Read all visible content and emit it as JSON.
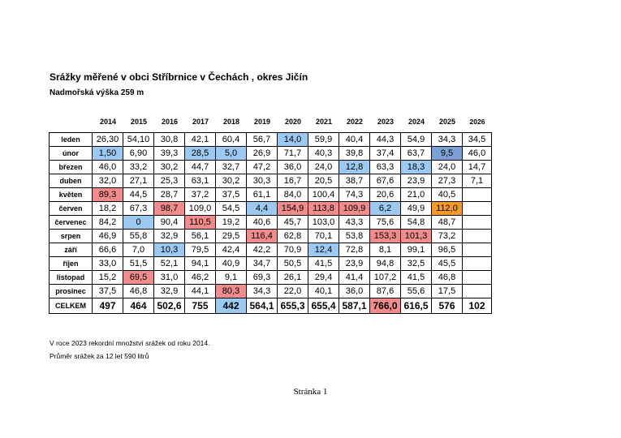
{
  "document": {
    "title": "Srážky měřené v obci Stříbrnice v Čechách , okres Jičín",
    "subtitle": "Nadmořská výška 259 m",
    "note1": "V roce 2023 rekordní množství srážek od roku 2014.",
    "note2": "Průměr srážek za 12 let 590 litrů",
    "footer": "Stránka 1"
  },
  "colors": {
    "blue": "#9cc9f2",
    "dark_blue": "#7ba0d6",
    "red": "#f28b8b",
    "orange": "#f59a23"
  },
  "table": {
    "years": [
      "2014",
      "2015",
      "2016",
      "2017",
      "2018",
      "2019",
      "2020",
      "2021",
      "2022",
      "2023",
      "2024",
      "2025",
      "2026"
    ],
    "rows": [
      {
        "month": "leden",
        "values": [
          "26,30",
          "54,10",
          "30,8",
          "42,1",
          "60,4",
          "56,7",
          "14,0",
          "59,9",
          "40,4",
          "44,3",
          "54,9",
          "34,3",
          "34,5"
        ],
        "highlights": {
          "6": "blue"
        }
      },
      {
        "month": "únor",
        "values": [
          "1,50",
          "6,90",
          "39,3",
          "28,5",
          "5,0",
          "26,9",
          "71,7",
          "40,3",
          "39,8",
          "37,4",
          "63,7",
          "9,5",
          "46,0"
        ],
        "highlights": {
          "0": "blue",
          "3": "blue",
          "4": "blue",
          "11": "dark_blue"
        }
      },
      {
        "month": "březen",
        "values": [
          "46,0",
          "33,2",
          "30,2",
          "44,7",
          "32,7",
          "47,2",
          "36,0",
          "24,0",
          "12,8",
          "63,3",
          "18,3",
          "24,0",
          "14,7"
        ],
        "highlights": {
          "8": "blue",
          "10": "blue"
        }
      },
      {
        "month": "duben",
        "values": [
          "32,0",
          "27,1",
          "25,3",
          "63,1",
          "30,2",
          "30,3",
          "16,7",
          "20,5",
          "38,7",
          "67,6",
          "23,9",
          "27,3",
          "7,1"
        ],
        "highlights": {}
      },
      {
        "month": "květen",
        "values": [
          "89,3",
          "44,5",
          "28,7",
          "37,2",
          "37,5",
          "61,1",
          "84,0",
          "100,4",
          "74,3",
          "20,6",
          "21,0",
          "40,5",
          ""
        ],
        "highlights": {
          "0": "red"
        }
      },
      {
        "month": "červen",
        "values": [
          "18,2",
          "67,3",
          "98,7",
          "109,0",
          "54,5",
          "4,4",
          "154,9",
          "113,8",
          "109,9",
          "6,2",
          "49,9",
          "112,0",
          ""
        ],
        "highlights": {
          "2": "red",
          "5": "blue",
          "6": "red",
          "7": "red",
          "8": "red",
          "9": "blue",
          "11": "orange"
        }
      },
      {
        "month": "červenec",
        "values": [
          "84,2",
          "0",
          "90,4",
          "110,5",
          "19,2",
          "40,6",
          "45,7",
          "103,0",
          "43,3",
          "75,6",
          "54,8",
          "48,7",
          ""
        ],
        "highlights": {
          "1": "blue",
          "3": "red"
        }
      },
      {
        "month": "srpen",
        "values": [
          "46,9",
          "55,8",
          "32,9",
          "56,1",
          "29,5",
          "116,4",
          "62,8",
          "70,1",
          "53,8",
          "153,3",
          "101,3",
          "73,2",
          ""
        ],
        "highlights": {
          "5": "red",
          "9": "red",
          "10": "red"
        }
      },
      {
        "month": "září",
        "values": [
          "66,6",
          "7,0",
          "10,3",
          "79,5",
          "42,4",
          "42,2",
          "70,9",
          "12,4",
          "72,8",
          "8,1",
          "99,1",
          "96,5",
          ""
        ],
        "highlights": {
          "2": "blue",
          "7": "blue"
        }
      },
      {
        "month": "říjen",
        "values": [
          "33,0",
          "51,5",
          "52,1",
          "94,1",
          "40,9",
          "34,7",
          "50,5",
          "41,5",
          "23,9",
          "94,8",
          "32,5",
          "45,5",
          ""
        ],
        "highlights": {}
      },
      {
        "month": "listopad",
        "values": [
          "15,2",
          "69,5",
          "31,0",
          "46,2",
          "9,1",
          "69,3",
          "26,1",
          "29,4",
          "41,4",
          "107,2",
          "41,5",
          "46,8",
          ""
        ],
        "highlights": {
          "1": "red"
        }
      },
      {
        "month": "prosinec",
        "values": [
          "37,5",
          "46,8",
          "32,9",
          "44,1",
          "80,3",
          "34,3",
          "22,0",
          "40,1",
          "36,0",
          "87,6",
          "55,6",
          "17,5",
          ""
        ],
        "highlights": {
          "4": "red"
        }
      }
    ],
    "total": {
      "month": "CELKEM",
      "values": [
        "497",
        "464",
        "502,6",
        "755",
        "442",
        "564,1",
        "655,3",
        "655,4",
        "587,1",
        "766,0",
        "616,5",
        "576",
        "102"
      ],
      "highlights": {
        "4": "blue",
        "9": "red"
      }
    }
  }
}
